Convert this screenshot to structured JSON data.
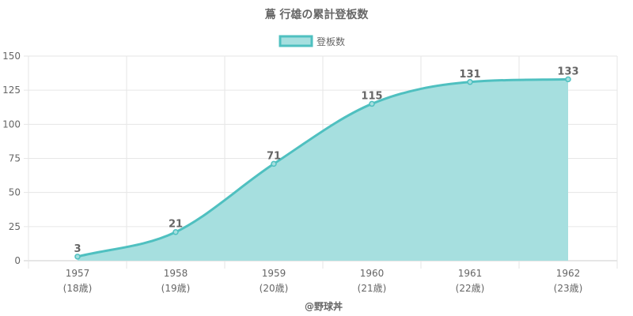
{
  "chart_data": {
    "type": "area",
    "title": "蔦 行雄の累計登板数",
    "legend": {
      "label": "登板数",
      "position": "top"
    },
    "categories": [
      "1957",
      "1958",
      "1959",
      "1960",
      "1961",
      "1962"
    ],
    "sublabels": [
      "(18歳)",
      "(19歳)",
      "(20歳)",
      "(21歳)",
      "(22歳)",
      "(23歳)"
    ],
    "series": [
      {
        "name": "登板数",
        "values": [
          3,
          21,
          71,
          115,
          131,
          133
        ]
      }
    ],
    "data_labels": [
      "3",
      "21",
      "71",
      "115",
      "131",
      "133"
    ],
    "y_ticks": [
      "0",
      "25",
      "50",
      "75",
      "100",
      "125",
      "150"
    ],
    "ylim": [
      0,
      150
    ],
    "grid": true,
    "colors": {
      "line": "#4fc0c0",
      "fill": "#a6dfdf",
      "grid": "#e6e6e6",
      "text": "#666666"
    },
    "footer": "@野球丼"
  }
}
